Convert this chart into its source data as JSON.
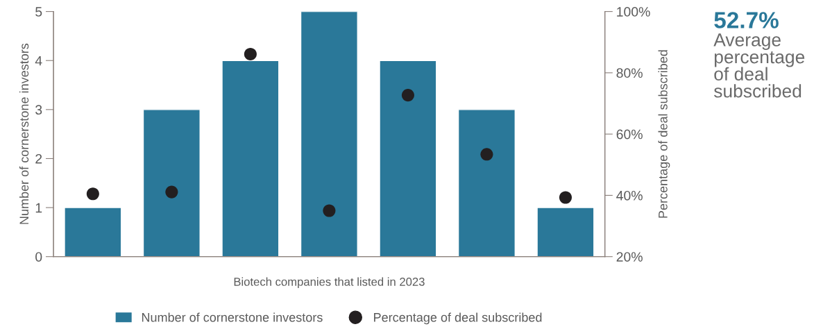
{
  "chart_data": {
    "type": "bar",
    "xlabel": "Biotech companies that listed in 2023",
    "ylabel": "Number of cornerstone investors",
    "y2label": "Percentage of deal subscribed",
    "categories": [
      null,
      null,
      null,
      null,
      null,
      null,
      null
    ],
    "series": [
      {
        "name": "Number of cornerstone investors",
        "color": "#2a7899",
        "values": [
          1,
          3,
          4,
          5,
          4,
          3,
          1
        ]
      },
      {
        "name": "Percentage of deal subscribed",
        "type": "scatter",
        "axis": "y2",
        "color": "#231f20",
        "marker": "circle",
        "values": [
          40.5,
          41.1,
          86.1,
          35.0,
          72.7,
          53.4,
          39.3
        ]
      }
    ],
    "ylim": [
      0,
      5
    ],
    "yticks": [
      0,
      1,
      2,
      3,
      4,
      5
    ],
    "y2lim": [
      20,
      100
    ],
    "y2ticks": [
      {
        "value": 20,
        "label": "20%"
      },
      {
        "value": 40,
        "label": "40%"
      },
      {
        "value": 60,
        "label": "60%"
      },
      {
        "value": 80,
        "label": "80%"
      },
      {
        "value": 100,
        "label": "100%"
      }
    ],
    "grid": false,
    "legend": "bottom",
    "annotations": [
      "52.7%",
      "Average percentage of deal subscribed"
    ]
  }
}
